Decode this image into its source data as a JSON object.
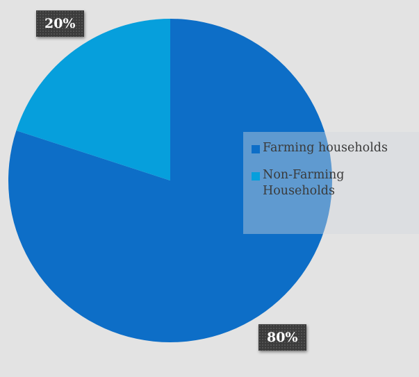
{
  "chart_data": {
    "type": "pie",
    "title": "",
    "categories": [
      "Farming households",
      "Non-Farming Households"
    ],
    "values": [
      80,
      20
    ],
    "value_labels": [
      "80%",
      "20%"
    ],
    "colors": [
      "#0d6ec7",
      "#069fdc"
    ],
    "legend": {
      "placement": "right",
      "entries": [
        "Farming households",
        "Non-Farming Households"
      ]
    },
    "start_angle_deg": 0,
    "direction": "counterclockwise"
  }
}
